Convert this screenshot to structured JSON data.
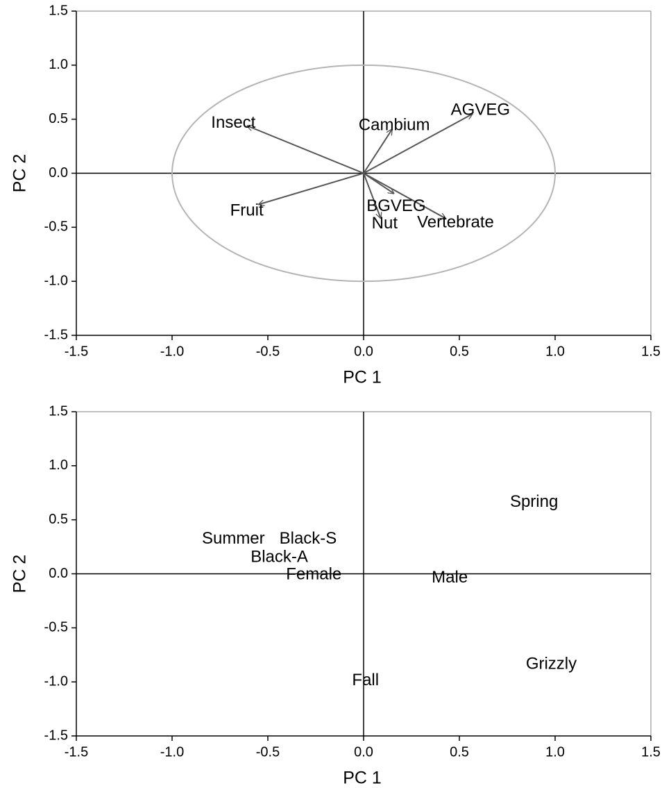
{
  "chart_data": [
    {
      "type": "biplot",
      "xlabel": "PC 1",
      "ylabel": "PC 2",
      "xlim": [
        -1.5,
        1.5
      ],
      "ylim": [
        -1.5,
        1.5
      ],
      "xticks": [
        -1.5,
        {
          "value": -1,
          "label": "-1.0"
        },
        -0.5,
        {
          "value": 0,
          "label": "0.0"
        },
        0.5,
        {
          "value": 1,
          "label": "1.0"
        },
        1.5
      ],
      "yticks": [
        -1.5,
        {
          "value": -1,
          "label": "-1.0"
        },
        -0.5,
        {
          "value": 0,
          "label": "0.0"
        },
        0.5,
        {
          "value": 1,
          "label": "1.0"
        },
        1.5
      ],
      "circle_radius": 1,
      "circle_color": "#b4b4b4",
      "arrow_color": "#555555",
      "names": [
        "Insect",
        "Cambium",
        "AGVEG",
        "Fruit",
        "BGVEG",
        "Nut",
        "Vertebrate"
      ],
      "x": [
        -0.61,
        0.15,
        0.57,
        -0.55,
        0.16,
        0.09,
        0.43
      ],
      "y": [
        0.44,
        0.41,
        0.55,
        -0.29,
        -0.19,
        -0.42,
        -0.42
      ],
      "label_x": [
        -0.68,
        0.16,
        0.61,
        -0.61,
        0.17,
        0.11,
        0.48
      ],
      "label_y": [
        0.46,
        0.44,
        0.58,
        -0.35,
        -0.31,
        -0.47,
        -0.46
      ]
    },
    {
      "type": "scatter",
      "xlabel": "PC 1",
      "ylabel": "PC 2",
      "xlim": [
        -1.5,
        1.5
      ],
      "ylim": [
        -1.5,
        1.5
      ],
      "xticks": [
        -1.5,
        {
          "value": -1,
          "label": "-1.0"
        },
        -0.5,
        {
          "value": 0,
          "label": "0.0"
        },
        0.5,
        {
          "value": 1,
          "label": "1.0"
        },
        1.5
      ],
      "yticks": [
        -1.5,
        {
          "value": -1,
          "label": "-1.0"
        },
        -0.5,
        {
          "value": 0,
          "label": "0.0"
        },
        0.5,
        {
          "value": 1,
          "label": "1.0"
        },
        1.5
      ],
      "names": [
        "Spring",
        "Summer",
        "Black-S",
        "Black-A",
        "Female",
        "Male",
        "Grizzly",
        "Fall"
      ],
      "x": [
        0.89,
        -0.68,
        -0.29,
        -0.44,
        -0.26,
        0.45,
        0.98,
        0.01
      ],
      "y": [
        0.66,
        0.32,
        0.32,
        0.15,
        -0.01,
        -0.04,
        -0.84,
        -0.99
      ]
    }
  ]
}
